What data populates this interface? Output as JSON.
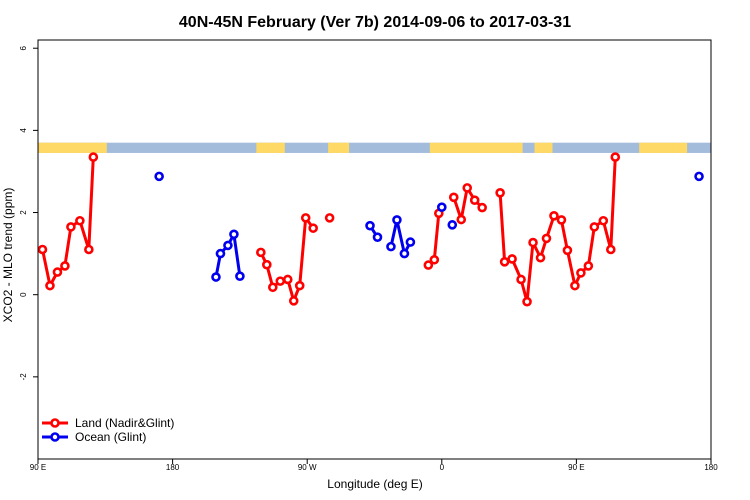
{
  "chart_data": {
    "type": "line",
    "title": "40N-45N February (Ver 7b)   2014-09-06 to 2017-03-31",
    "xlabel": "Longitude (deg E)",
    "ylabel": "XCO2 - MLO trend (ppm)",
    "x_ticks": [
      {
        "value": 90,
        "label": "90 E"
      },
      {
        "value": 180,
        "label": "180"
      },
      {
        "value": 270,
        "label": "90 W"
      },
      {
        "value": 360,
        "label": "0"
      },
      {
        "value": 450,
        "label": "90 E"
      },
      {
        "value": 540,
        "label": "180"
      }
    ],
    "y_ticks": [
      {
        "value": -2,
        "label": "-2"
      },
      {
        "value": 0,
        "label": "0"
      },
      {
        "value": 2,
        "label": "2"
      },
      {
        "value": 4,
        "label": "4"
      },
      {
        "value": 6,
        "label": "6"
      }
    ],
    "xlim": [
      90,
      540
    ],
    "ylim": [
      -4,
      6.2
    ],
    "surface_band": {
      "ylim": [
        3.45,
        3.7
      ],
      "land_color": "#ffd966",
      "ocean_color": "#a4bcdc",
      "land_segments": [
        [
          90,
          136
        ],
        [
          236,
          255
        ],
        [
          284,
          298
        ],
        [
          352,
          414
        ],
        [
          422,
          434
        ],
        [
          492,
          524
        ]
      ]
    },
    "legend": {
      "position": "bottom-left"
    },
    "series": [
      {
        "name": "Land (Nadir&Glint)",
        "color": "#ff0000",
        "segments": [
          [
            [
              93,
              1.1
            ],
            [
              98,
              0.22
            ],
            [
              103,
              0.55
            ],
            [
              108,
              0.7
            ],
            [
              112,
              1.65
            ],
            [
              118,
              1.8
            ],
            [
              124,
              1.1
            ],
            [
              127,
              3.35
            ]
          ],
          [
            [
              239,
              1.03
            ],
            [
              243,
              0.73
            ],
            [
              247,
              0.18
            ],
            [
              252,
              0.33
            ],
            [
              257,
              0.37
            ],
            [
              261,
              -0.15
            ],
            [
              265,
              0.22
            ],
            [
              269,
              1.87
            ],
            [
              274,
              1.62
            ]
          ],
          [
            [
              285,
              1.87
            ]
          ],
          [
            [
              351,
              0.72
            ],
            [
              355,
              0.85
            ],
            [
              358,
              1.98
            ]
          ],
          [
            [
              368,
              2.37
            ],
            [
              373,
              1.83
            ],
            [
              377,
              2.6
            ],
            [
              382,
              2.3
            ],
            [
              387,
              2.12
            ]
          ],
          [
            [
              399,
              2.48
            ],
            [
              402,
              0.8
            ],
            [
              407,
              0.87
            ],
            [
              413,
              0.37
            ],
            [
              417,
              -0.17
            ],
            [
              421,
              1.27
            ],
            [
              426,
              0.9
            ],
            [
              430,
              1.37
            ],
            [
              435,
              1.92
            ],
            [
              440,
              1.82
            ],
            [
              444,
              1.08
            ],
            [
              449,
              0.22
            ],
            [
              453,
              0.53
            ],
            [
              458,
              0.7
            ],
            [
              462,
              1.65
            ],
            [
              468,
              1.8
            ],
            [
              473,
              1.1
            ],
            [
              476,
              3.35
            ]
          ]
        ]
      },
      {
        "name": "Ocean (Glint)",
        "color": "#0000ee",
        "segments": [
          [
            [
              171,
              2.88
            ]
          ],
          [
            [
              209,
              0.43
            ],
            [
              212,
              1.0
            ],
            [
              217,
              1.2
            ],
            [
              221,
              1.47
            ],
            [
              225,
              0.45
            ]
          ],
          [
            [
              312,
              1.68
            ],
            [
              317,
              1.4
            ]
          ],
          [
            [
              326,
              1.17
            ],
            [
              330,
              1.82
            ],
            [
              335,
              1.0
            ],
            [
              339,
              1.28
            ]
          ],
          [
            [
              360,
              2.13
            ]
          ],
          [
            [
              367,
              1.7
            ]
          ],
          [
            [
              532,
              2.88
            ]
          ]
        ]
      }
    ]
  }
}
